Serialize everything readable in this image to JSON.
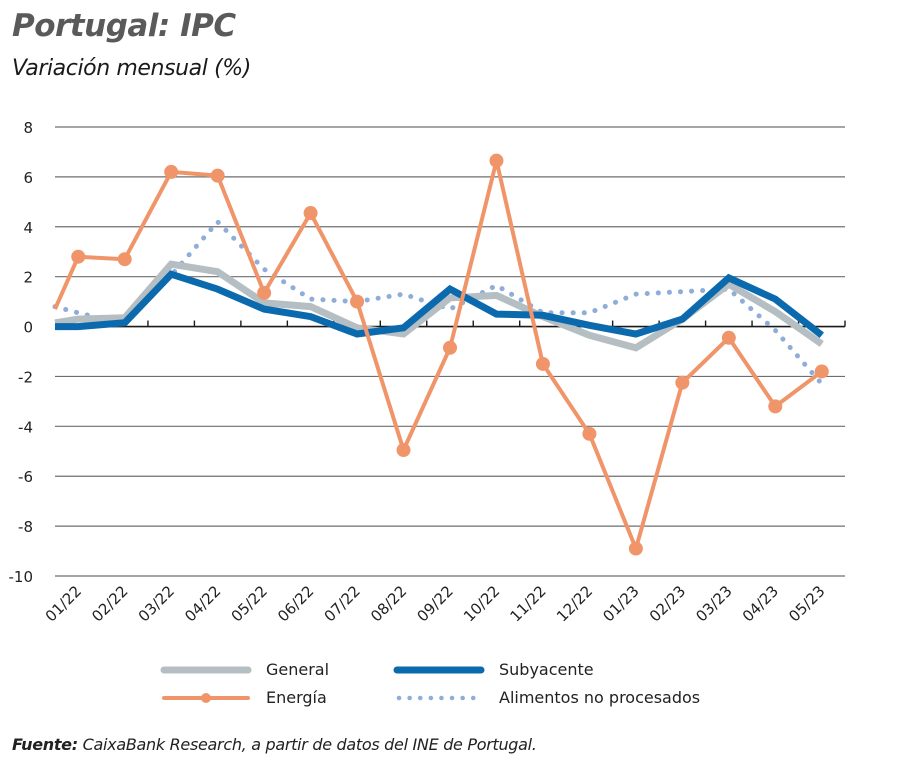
{
  "header": {
    "title": "Portugal: IPC",
    "subtitle": "Variación mensual (%)"
  },
  "source": {
    "label": "Fuente:",
    "text": " CaixaBank Research, a partir de datos del INE de Portugal."
  },
  "chart_data": {
    "type": "line",
    "title": "Portugal: IPC",
    "subtitle": "Variación mensual (%)",
    "xlabel": "",
    "ylabel": "",
    "ylim": [
      -10,
      8
    ],
    "yticks": [
      8,
      6,
      4,
      2,
      0,
      -2,
      -4,
      -6,
      -8,
      -10
    ],
    "grid": true,
    "legend_position": "bottom",
    "categories": [
      "01/22",
      "02/22",
      "03/22",
      "04/22",
      "05/22",
      "06/22",
      "07/22",
      "08/22",
      "09/22",
      "10/22",
      "11/22",
      "12/22",
      "01/23",
      "02/23",
      "03/23",
      "04/23",
      "05/23"
    ],
    "series": [
      {
        "name": "General",
        "color": "#b5bfc3",
        "style": "solid-thick",
        "start_value": 0.15,
        "values": [
          0.3,
          0.35,
          2.5,
          2.2,
          0.95,
          0.8,
          -0.05,
          -0.3,
          1.15,
          1.25,
          0.4,
          -0.35,
          -0.85,
          0.3,
          1.7,
          0.6,
          -0.7
        ]
      },
      {
        "name": "Subyacente",
        "color": "#0b6aae",
        "style": "solid-thick",
        "start_value": 0.0,
        "values": [
          0.0,
          0.15,
          2.1,
          1.5,
          0.7,
          0.4,
          -0.3,
          -0.05,
          1.5,
          0.5,
          0.45,
          0.05,
          -0.3,
          0.3,
          1.95,
          1.1,
          -0.35
        ]
      },
      {
        "name": "Energía",
        "color": "#f0956a",
        "style": "solid-markers",
        "start_value": 0.7,
        "values": [
          2.8,
          2.7,
          6.2,
          6.05,
          1.35,
          4.55,
          1.0,
          -4.95,
          -0.85,
          6.65,
          -1.5,
          -4.3,
          -8.9,
          -2.25,
          -0.45,
          -3.2,
          -1.8
        ]
      },
      {
        "name": "Alimentos no procesados",
        "color": "#8fadd9",
        "style": "dotted",
        "start_value": 0.8,
        "values": [
          0.55,
          0.1,
          2.05,
          4.2,
          2.3,
          1.1,
          1.0,
          1.3,
          0.7,
          1.65,
          0.55,
          0.55,
          1.3,
          1.4,
          1.5,
          -0.15,
          -2.3
        ]
      }
    ]
  },
  "legend": [
    {
      "label": "General"
    },
    {
      "label": "Subyacente"
    },
    {
      "label": "Energía"
    },
    {
      "label": "Alimentos no procesados"
    }
  ]
}
